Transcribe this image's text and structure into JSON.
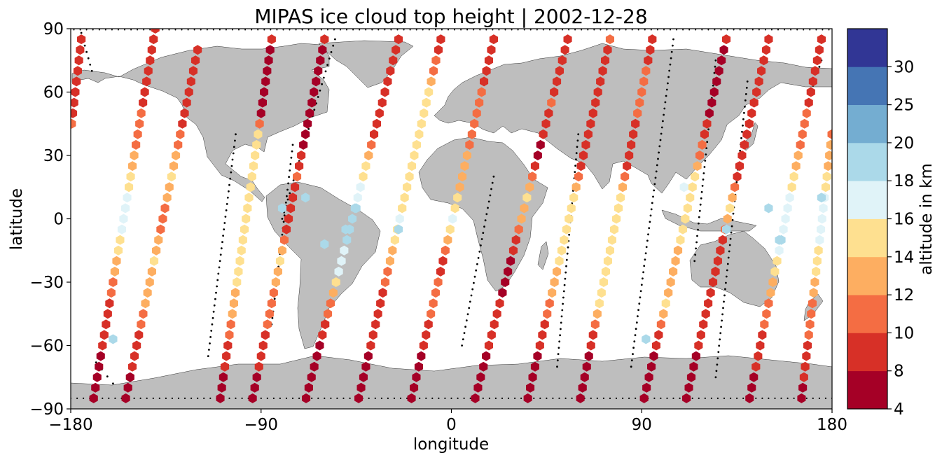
{
  "chart_data": {
    "type": "scatter",
    "title": "MIPAS ice cloud top height | 2002-12-28",
    "xlabel": "longitude",
    "ylabel": "latitude",
    "xlim": [
      -180,
      180
    ],
    "ylim": [
      -90,
      90
    ],
    "xticks": [
      -180,
      -90,
      0,
      90,
      180
    ],
    "xtick_labels": [
      "−180",
      "−90",
      "0",
      "90",
      "180"
    ],
    "yticks": [
      -90,
      -60,
      -30,
      0,
      30,
      60,
      90
    ],
    "ytick_labels": [
      "−90",
      "−60",
      "−30",
      "0",
      "30",
      "60",
      "90"
    ],
    "marker": "hexagon",
    "grid": false,
    "background": "world map (land grey #bebebe, ocean white)",
    "colorbar": {
      "label": "altitude in km",
      "boundaries": [
        4,
        8,
        10,
        12,
        14,
        16,
        18,
        20,
        25,
        30
      ],
      "tick_labels": [
        "4",
        "8",
        "10",
        "12",
        "14",
        "16",
        "18",
        "20",
        "25",
        "30"
      ],
      "colors": [
        "#a50026",
        "#d73027",
        "#f46d43",
        "#fdae61",
        "#fee090",
        "#e0f3f8",
        "#abd9e9",
        "#74add1",
        "#4575b4",
        "#313695"
      ]
    },
    "tracks": [
      {
        "lon0": -140,
        "lat0": 90,
        "lon1": -170,
        "lat1": -90,
        "sched": [
          [
            90,
            8
          ],
          [
            60,
            9
          ],
          [
            30,
            12
          ],
          [
            10,
            16
          ],
          [
            0,
            17
          ],
          [
            -20,
            13
          ],
          [
            -40,
            9
          ],
          [
            -60,
            8
          ],
          [
            -90,
            6
          ]
        ]
      },
      {
        "lon0": -120,
        "lat0": 80,
        "lon1": -155,
        "lat1": -90,
        "sched": [
          [
            80,
            8
          ],
          [
            50,
            8
          ],
          [
            20,
            14
          ],
          [
            0,
            11
          ],
          [
            -20,
            14
          ],
          [
            -40,
            12
          ],
          [
            -60,
            9
          ],
          [
            -90,
            6
          ]
        ]
      },
      {
        "lon0": -85,
        "lat0": 85,
        "lon1": -110,
        "lat1": -90,
        "sched": [
          [
            85,
            8
          ],
          [
            50,
            7
          ],
          [
            40,
            15
          ],
          [
            20,
            14
          ],
          [
            0,
            14
          ],
          [
            -20,
            15
          ],
          [
            -40,
            13
          ],
          [
            -60,
            9
          ],
          [
            -90,
            6
          ]
        ]
      },
      {
        "lon0": -60,
        "lat0": 85,
        "lon1": -95,
        "lat1": -90,
        "sched": [
          [
            85,
            8
          ],
          [
            40,
            7
          ],
          [
            20,
            10
          ],
          [
            0,
            8
          ],
          [
            -20,
            14
          ],
          [
            -40,
            11
          ],
          [
            -60,
            9
          ],
          [
            -90,
            6
          ]
        ]
      },
      {
        "lon0": -25,
        "lat0": 85,
        "lon1": -70,
        "lat1": -90,
        "sched": [
          [
            85,
            8
          ],
          [
            40,
            9
          ],
          [
            25,
            15
          ],
          [
            5,
            18
          ],
          [
            -10,
            18
          ],
          [
            -25,
            16
          ],
          [
            -45,
            10
          ],
          [
            -60,
            7
          ],
          [
            -90,
            6
          ]
        ]
      },
      {
        "lon0": -5,
        "lat0": 85,
        "lon1": -45,
        "lat1": -90,
        "sched": [
          [
            85,
            8
          ],
          [
            60,
            14
          ],
          [
            30,
            15
          ],
          [
            10,
            14
          ],
          [
            0,
            17
          ],
          [
            -20,
            12
          ],
          [
            -40,
            9
          ],
          [
            -60,
            8
          ],
          [
            -90,
            6
          ]
        ]
      },
      {
        "lon0": 20,
        "lat0": 85,
        "lon1": -20,
        "lat1": -90,
        "sched": [
          [
            85,
            8
          ],
          [
            60,
            10
          ],
          [
            30,
            12
          ],
          [
            10,
            14
          ],
          [
            0,
            17
          ],
          [
            -20,
            9
          ],
          [
            -40,
            11
          ],
          [
            -60,
            8
          ],
          [
            -90,
            6
          ]
        ]
      },
      {
        "lon0": 55,
        "lat0": 85,
        "lon1": 10,
        "lat1": -90,
        "sched": [
          [
            85,
            8
          ],
          [
            55,
            10
          ],
          [
            30,
            7
          ],
          [
            10,
            15
          ],
          [
            -20,
            7
          ],
          [
            -40,
            8
          ],
          [
            -60,
            8
          ],
          [
            -90,
            6
          ]
        ]
      },
      {
        "lon0": 75,
        "lat0": 85,
        "lon1": 35,
        "lat1": -90,
        "sched": [
          [
            85,
            10
          ],
          [
            55,
            8
          ],
          [
            30,
            8
          ],
          [
            10,
            14
          ],
          [
            -10,
            15
          ],
          [
            -30,
            13
          ],
          [
            -50,
            9
          ],
          [
            -90,
            6
          ]
        ]
      },
      {
        "lon0": 95,
        "lat0": 85,
        "lon1": 60,
        "lat1": -90,
        "sched": [
          [
            85,
            9
          ],
          [
            55,
            11
          ],
          [
            30,
            8
          ],
          [
            10,
            14
          ],
          [
            -10,
            15
          ],
          [
            -40,
            14
          ],
          [
            -60,
            8
          ],
          [
            -90,
            6
          ]
        ]
      },
      {
        "lon0": 130,
        "lat0": 85,
        "lon1": 90,
        "lat1": -90,
        "sched": [
          [
            85,
            8
          ],
          [
            50,
            7
          ],
          [
            20,
            14
          ],
          [
            0,
            15
          ],
          [
            -20,
            13
          ],
          [
            -40,
            14
          ],
          [
            -60,
            8
          ],
          [
            -90,
            6
          ]
        ]
      },
      {
        "lon0": 150,
        "lat0": 85,
        "lon1": 110,
        "lat1": -90,
        "sched": [
          [
            85,
            8
          ],
          [
            50,
            8
          ],
          [
            20,
            9
          ],
          [
            5,
            15
          ],
          [
            -10,
            9
          ],
          [
            -30,
            9
          ],
          [
            -60,
            8
          ],
          [
            -90,
            6
          ]
        ]
      },
      {
        "lon0": 175,
        "lat0": 85,
        "lon1": 140,
        "lat1": -90,
        "sched": [
          [
            85,
            8
          ],
          [
            50,
            10
          ],
          [
            25,
            13
          ],
          [
            5,
            17
          ],
          [
            -10,
            18
          ],
          [
            -30,
            13
          ],
          [
            -45,
            11
          ],
          [
            -70,
            8
          ],
          [
            -90,
            6
          ]
        ]
      },
      {
        "lon0": 185,
        "lat0": 85,
        "lon1": 165,
        "lat1": -90,
        "sched": [
          [
            85,
            8
          ],
          [
            55,
            9
          ],
          [
            30,
            13
          ],
          [
            10,
            16
          ],
          [
            -5,
            17
          ],
          [
            -25,
            14
          ],
          [
            -45,
            11
          ],
          [
            -70,
            9
          ],
          [
            -90,
            6
          ]
        ]
      }
    ],
    "extra_points": [
      {
        "lon": -160,
        "lat": -57,
        "alt": 19
      },
      {
        "lon": 92,
        "lat": -57,
        "alt": 19
      },
      {
        "lon": -80,
        "lat": 5,
        "alt": 19
      },
      {
        "lon": -50,
        "lat": -5,
        "alt": 19
      },
      {
        "lon": -45,
        "lat": 5,
        "alt": 18
      },
      {
        "lon": 130,
        "lat": -5,
        "alt": 19
      },
      {
        "lon": 150,
        "lat": 5,
        "alt": 19
      },
      {
        "lon": 175,
        "lat": 10,
        "alt": 19
      },
      {
        "lon": 155,
        "lat": -10,
        "alt": 18
      },
      {
        "lon": 110,
        "lat": 15,
        "alt": 17
      },
      {
        "lon": -69,
        "lat": 10,
        "alt": 18
      },
      {
        "lon": -60,
        "lat": -12,
        "alt": 18
      },
      {
        "lon": -25,
        "lat": -5,
        "alt": 19
      }
    ],
    "dotted_tracks": [
      {
        "lon0": -55,
        "lat0": 85,
        "lon1": -80,
        "lat1": 0
      },
      {
        "lon0": -102,
        "lat0": 40,
        "lon1": -115,
        "lat1": -65
      },
      {
        "lon0": -75,
        "lat0": 35,
        "lon1": -85,
        "lat1": -50
      },
      {
        "lon0": 20,
        "lat0": 20,
        "lon1": 5,
        "lat1": -60
      },
      {
        "lon0": 60,
        "lat0": 40,
        "lon1": 50,
        "lat1": -70
      },
      {
        "lon0": 105,
        "lat0": 85,
        "lon1": 85,
        "lat1": -70
      },
      {
        "lon0": 125,
        "lat0": 75,
        "lon1": 115,
        "lat1": -20
      },
      {
        "lon0": 140,
        "lat0": 65,
        "lon1": 125,
        "lat1": -75
      },
      {
        "lon0": -175,
        "lat0": 88,
        "lon1": -170,
        "lat1": 70
      },
      {
        "lon0": -168,
        "lat0": -68,
        "lon1": -160,
        "lat1": -78
      },
      {
        "lon0": 175,
        "lat0": 75,
        "lon1": 170,
        "lat1": 60
      }
    ]
  }
}
